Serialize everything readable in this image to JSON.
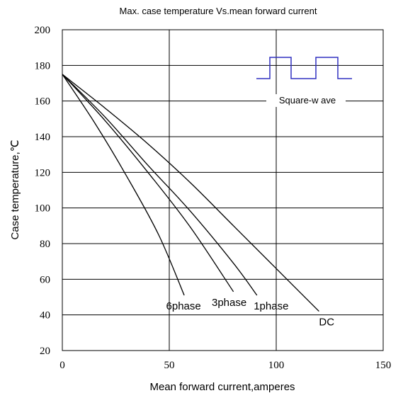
{
  "chart_data": {
    "type": "line",
    "title": "Max. case temperature  Vs.mean  forward  current",
    "xlabel": "Mean forward  current,amperes",
    "ylabel": "Case temperature,℃",
    "xlim": [
      0,
      150
    ],
    "ylim": [
      20,
      200
    ],
    "x_ticks": [
      0,
      50,
      100,
      150
    ],
    "y_ticks": [
      20,
      40,
      60,
      80,
      100,
      120,
      140,
      160,
      180,
      200
    ],
    "grid": true,
    "series": [
      {
        "name": "DC",
        "x": [
          0,
          20,
          40,
          60,
          80,
          100,
          120
        ],
        "y": [
          175,
          156,
          136,
          114,
          90,
          66,
          42
        ]
      },
      {
        "name": "1phase",
        "x": [
          0,
          20,
          40,
          60,
          80,
          91
        ],
        "y": [
          175,
          151,
          124,
          98,
          69,
          51
        ]
      },
      {
        "name": "3phase",
        "x": [
          0,
          20,
          40,
          60,
          80
        ],
        "y": [
          175,
          149,
          120,
          89,
          53
        ]
      },
      {
        "name": "6phase",
        "x": [
          0,
          15,
          30,
          45,
          57
        ],
        "y": [
          175,
          148,
          118,
          85,
          51
        ]
      }
    ],
    "inset": {
      "label": "Square-w ave"
    }
  },
  "colors": {
    "axis": "#000000",
    "curve": "#000000",
    "wave": "#3030c0"
  }
}
